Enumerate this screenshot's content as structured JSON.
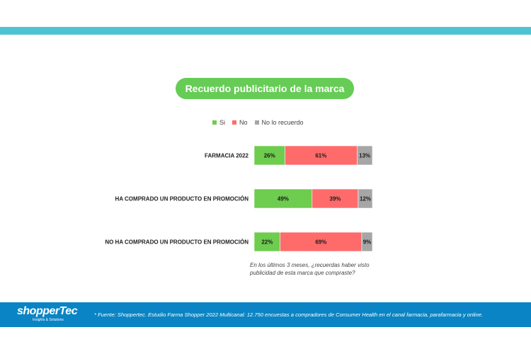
{
  "title": "Recuerdo publicitario de la marca",
  "colors": {
    "accent_bar": "#4fc3d3",
    "title_bg": "#66cc55",
    "footer_bg": "#0a84c4"
  },
  "question_note": "En los últimos 3 meses, ¿recuerdas haber visto publicidad de esta marca que compraste?",
  "footer": {
    "brand_name": "shopperTec",
    "brand_tagline": "Insights & Solutions",
    "source_note": "* Fuente: Shoppertec. Estudio Farma Shopper 2022 Multicanal: 12.750 encuestas a compradores de Consumer Health en el canal farmacia, parafarmacia y online."
  },
  "chart_data": {
    "type": "bar",
    "orientation": "horizontal",
    "stacked": true,
    "normalized": true,
    "categories": [
      "FARMACIA 2022",
      "HA COMPRADO UN PRODUCTO EN PROMOCIÓN",
      "NO HA COMPRADO UN PRODUCTO EN PROMOCIÓN"
    ],
    "series": [
      {
        "name": "Si",
        "values": [
          26,
          49,
          22
        ],
        "color": "#6ecc4e"
      },
      {
        "name": "No",
        "values": [
          61,
          39,
          69
        ],
        "color": "#ff6b6b"
      },
      {
        "name": "No lo recuerdo",
        "values": [
          13,
          12,
          9
        ],
        "color": "#a6a6a6"
      }
    ],
    "value_suffix": "%",
    "xlim": [
      0,
      100
    ],
    "grid": false,
    "legend_position": "top"
  }
}
